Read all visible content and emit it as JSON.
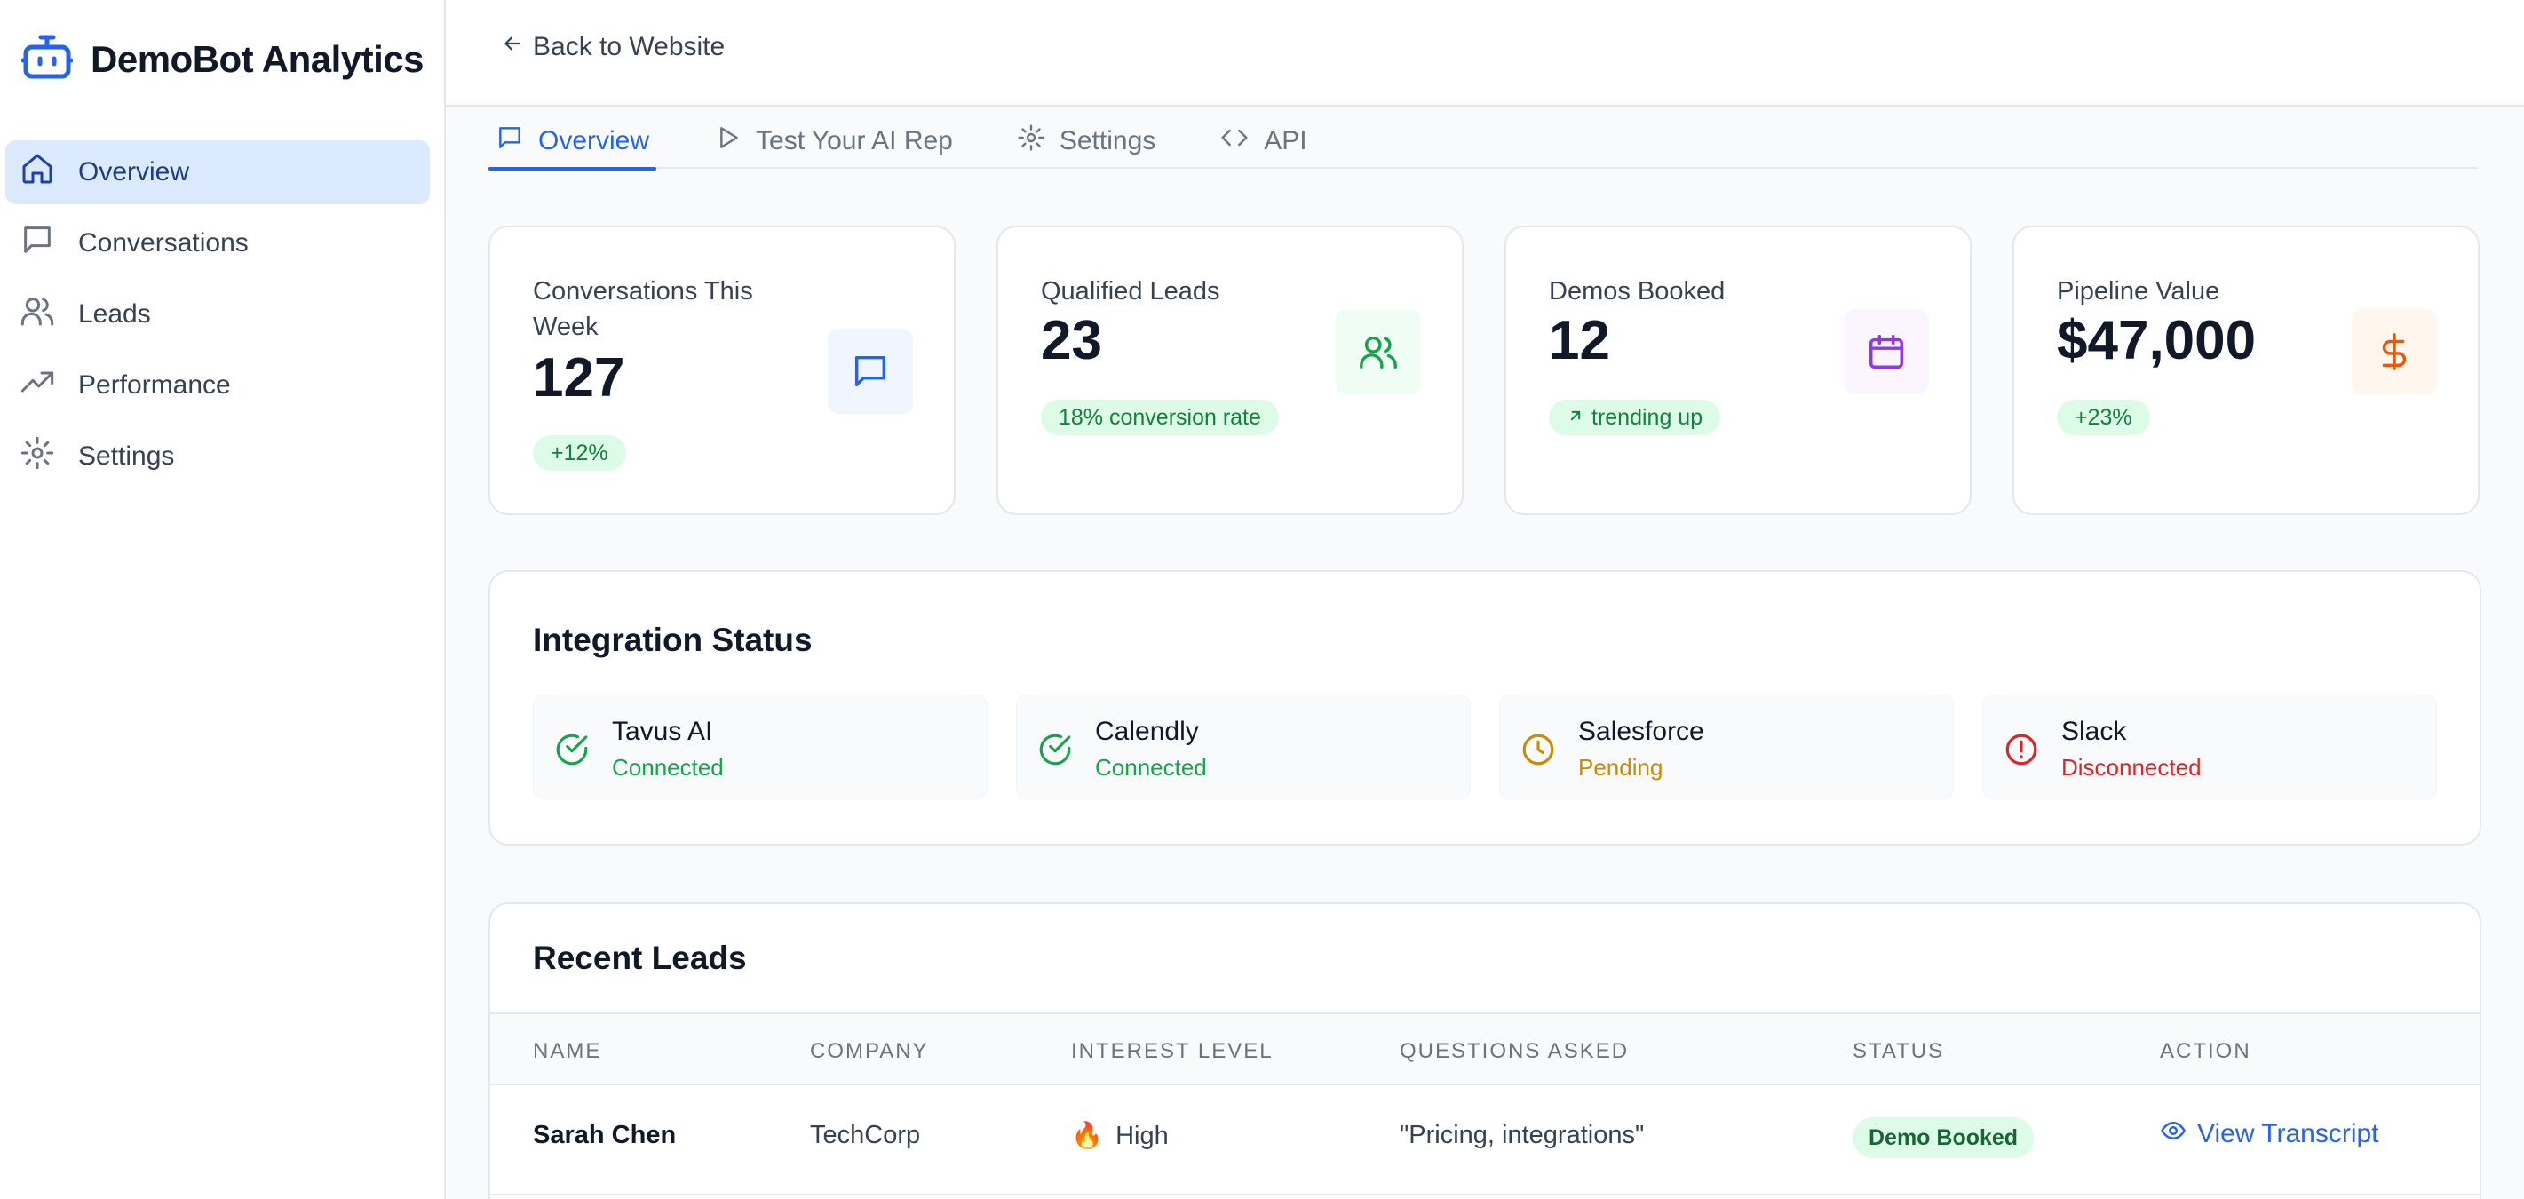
{
  "app": {
    "title": "DemoBot Analytics"
  },
  "sidebar": {
    "items": [
      {
        "label": "Overview",
        "icon": "home-icon",
        "active": true
      },
      {
        "label": "Conversations",
        "icon": "message-icon"
      },
      {
        "label": "Leads",
        "icon": "users-icon"
      },
      {
        "label": "Performance",
        "icon": "trending-up-icon"
      },
      {
        "label": "Settings",
        "icon": "gear-icon"
      }
    ]
  },
  "header": {
    "back_label": "Back to Website"
  },
  "tabs": [
    {
      "label": "Overview",
      "icon": "message-icon",
      "active": true
    },
    {
      "label": "Test Your AI Rep",
      "icon": "play-icon"
    },
    {
      "label": "Settings",
      "icon": "gear-icon"
    },
    {
      "label": "API",
      "icon": "code-icon"
    }
  ],
  "stats": [
    {
      "label": "Conversations This Week",
      "value": "127",
      "badge": "+12%",
      "icon": "message-icon",
      "accent": "#2563eb"
    },
    {
      "label": "Qualified Leads",
      "value": "23",
      "badge": "18% conversion rate",
      "icon": "users-icon",
      "accent": "#16a34a"
    },
    {
      "label": "Demos Booked",
      "value": "12",
      "badge": "trending up",
      "icon": "calendar-icon",
      "accent": "#9333ea"
    },
    {
      "label": "Pipeline Value",
      "value": "$47,000",
      "badge": "+23%",
      "icon": "dollar-icon",
      "accent": "#ea580c"
    }
  ],
  "integrations": {
    "title": "Integration Status",
    "items": [
      {
        "name": "Tavus AI",
        "status": "Connected",
        "color": "#16a34a",
        "icon": "check-circle-icon"
      },
      {
        "name": "Calendly",
        "status": "Connected",
        "color": "#16a34a",
        "icon": "check-circle-icon"
      },
      {
        "name": "Salesforce",
        "status": "Pending",
        "color": "#ca8a04",
        "icon": "clock-icon"
      },
      {
        "name": "Slack",
        "status": "Disconnected",
        "color": "#dc2626",
        "icon": "alert-circle-icon"
      }
    ]
  },
  "leads": {
    "title": "Recent Leads",
    "columns": [
      "NAME",
      "COMPANY",
      "INTEREST LEVEL",
      "QUESTIONS ASKED",
      "STATUS",
      "ACTION"
    ],
    "rows": [
      {
        "name": "Sarah Chen",
        "company": "TechCorp",
        "interest_emoji": "🔥",
        "interest": "High",
        "questions": "\"Pricing, integrations\"",
        "status": "Demo Booked",
        "action": "View Transcript"
      }
    ]
  }
}
